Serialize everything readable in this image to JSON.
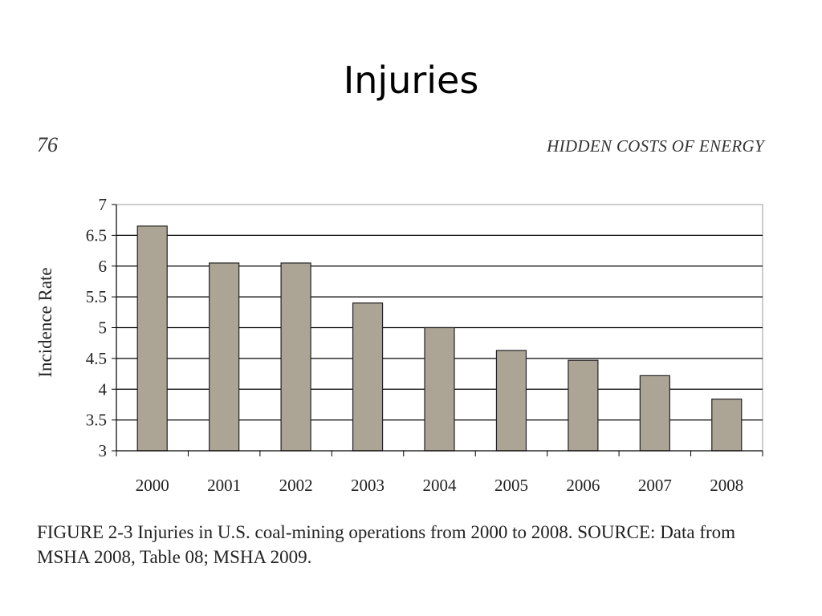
{
  "slide": {
    "title": "Injuries"
  },
  "book": {
    "page_number": "76",
    "running_head": "HIDDEN COSTS OF ENERGY"
  },
  "caption": {
    "text": "FIGURE 2-3  Injuries in U.S. coal-mining operations from 2000 to 2008. SOURCE: Data from MSHA 2008, Table 08; MSHA 2009."
  },
  "colors": {
    "bar_fill": "#aca494",
    "bar_stroke": "#222222",
    "grid": "#000000"
  },
  "chart_data": {
    "type": "bar",
    "categories": [
      "2000",
      "2001",
      "2002",
      "2003",
      "2004",
      "2005",
      "2006",
      "2007",
      "2008"
    ],
    "values": [
      6.65,
      6.05,
      6.05,
      5.4,
      5.0,
      4.63,
      4.47,
      4.22,
      3.84
    ],
    "title": "",
    "xlabel": "",
    "ylabel": "Incidence Rate",
    "ylim": [
      3,
      7
    ],
    "yticks": [
      "3",
      "3.5",
      "4",
      "4.5",
      "5",
      "5.5",
      "6",
      "6.5",
      "7"
    ],
    "grid": true,
    "legend": "none"
  }
}
